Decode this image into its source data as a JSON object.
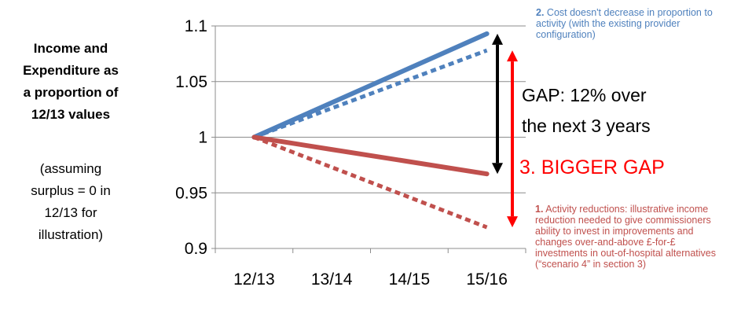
{
  "chart_data": {
    "type": "line",
    "title": "",
    "categories": [
      "12/13",
      "13/14",
      "14/15",
      "15/16"
    ],
    "ylim": [
      0.9,
      1.1
    ],
    "y_ticks": [
      "0.9",
      "0.95",
      "1",
      "1.05",
      "1.1"
    ],
    "grid": "horizontal",
    "series": [
      {
        "key": "expenditure_solid",
        "color": "#4f81bd",
        "style": "solid",
        "values": [
          1.0,
          1.031,
          1.062,
          1.093
        ]
      },
      {
        "key": "expenditure_dotted",
        "color": "#4f81bd",
        "style": "dotted",
        "values": [
          1.0,
          1.026,
          1.052,
          1.078
        ]
      },
      {
        "key": "income_solid",
        "color": "#c0504d",
        "style": "solid",
        "values": [
          1.0,
          0.989,
          0.978,
          0.967
        ]
      },
      {
        "key": "income_dotted",
        "color": "#c0504d",
        "style": "dotted",
        "values": [
          1.0,
          0.973,
          0.946,
          0.919
        ]
      }
    ],
    "arrows": [
      {
        "key": "gap_arrow",
        "color": "#000000",
        "from": 1.093,
        "to": 0.967
      },
      {
        "key": "bigger_gap_arrow",
        "color": "#ff0000",
        "from": 1.078,
        "to": 0.919
      }
    ]
  },
  "side_title": [
    "Income and",
    "Expenditure as",
    "a proportion of",
    "12/13 values"
  ],
  "side_note": [
    "(assuming",
    "surplus = 0 in",
    "12/13 for",
    "illustration)"
  ],
  "note_blue": {
    "num": "2.",
    "text": "Cost doesn't decrease in proportion to activity (with the existing provider configuration)"
  },
  "note_red": {
    "num": "1.",
    "text": "Activity reductions: illustrative income reduction needed to give commissioners ability to invest in improvements and changes over-and-above £-for-£ investments in out-of-hospital alternatives (“scenario 4” in section 3)"
  },
  "gap_text": [
    "GAP: 12% over",
    "the next 3 years"
  ],
  "bigger_gap": "3. BIGGER GAP",
  "colors": {
    "blue": "#4f81bd",
    "red": "#c0504d",
    "bright_red": "#ff0000"
  }
}
